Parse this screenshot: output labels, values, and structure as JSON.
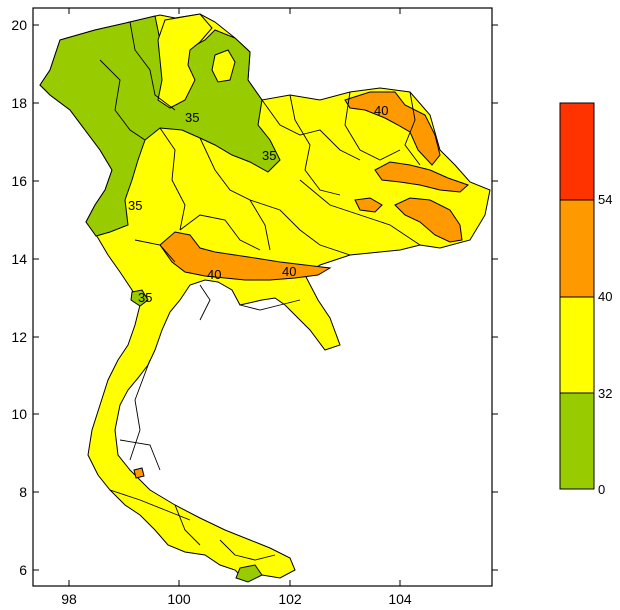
{
  "map": {
    "x_ticks": [
      "98",
      "100",
      "102",
      "104"
    ],
    "y_ticks": [
      "6",
      "8",
      "10",
      "12",
      "14",
      "16",
      "18",
      "20"
    ],
    "contour_labels": [
      "40",
      "40",
      "40",
      "35",
      "35",
      "35",
      "35"
    ]
  },
  "colorbar": {
    "levels": [
      "0",
      "32",
      "40",
      "54"
    ],
    "colors": {
      "band_0_32": "#99cc00",
      "band_32_40": "#ffff00",
      "band_40_54": "#ff9900",
      "band_54_plus": "#ff3300"
    }
  }
}
